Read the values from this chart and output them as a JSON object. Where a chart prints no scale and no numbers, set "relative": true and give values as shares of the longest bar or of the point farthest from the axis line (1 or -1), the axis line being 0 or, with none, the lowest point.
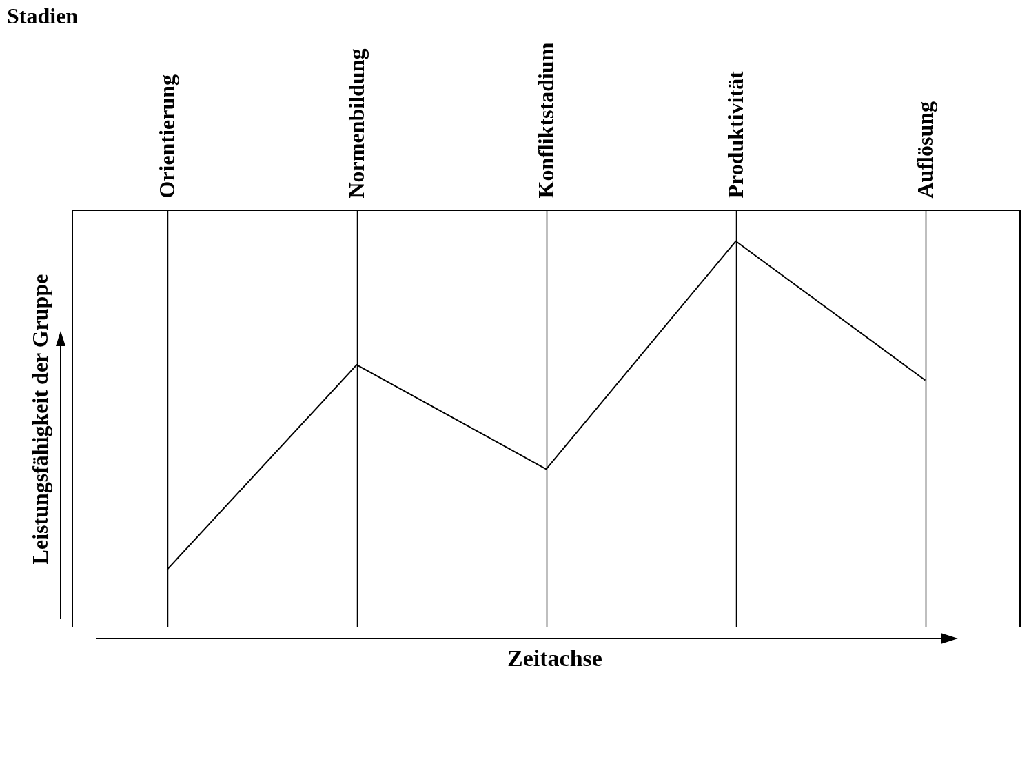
{
  "chart_data": {
    "type": "line",
    "title": "Stadien",
    "xlabel": "Zeitachse",
    "ylabel": "Leistungsfähigkeit der Gruppe",
    "categories": [
      "Orientierung",
      "Normenbildung",
      "Konfliktstadium",
      "Produktivität",
      "Auflösung"
    ],
    "series": [
      {
        "color": "#000000",
        "values": [
          0.15,
          0.68,
          0.41,
          1,
          0.64
        ]
      }
    ],
    "relative": true,
    "grid": "x",
    "line_style": "solid"
  }
}
